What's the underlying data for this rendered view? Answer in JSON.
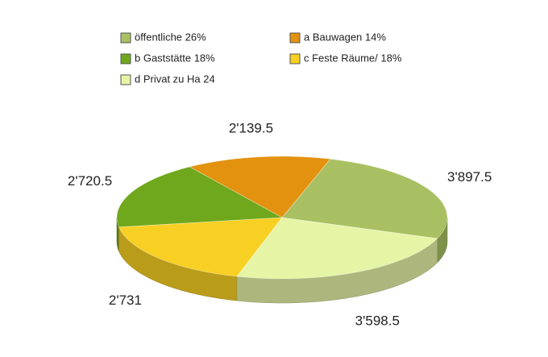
{
  "chart_data": {
    "type": "pie3d",
    "categories": [
      "öffentliche 26%",
      "a Bauwagen 14%",
      "b Gaststätte 18%",
      "c Feste Räume/ 18%",
      "d Privat zu Ha 24"
    ],
    "values": [
      3897.5,
      2139.5,
      2720.5,
      2731,
      3598.5
    ],
    "value_labels": [
      "3'897.5",
      "2'139.5",
      "2'720.5",
      "2'731",
      "3'598.5"
    ],
    "colors": [
      "#a9c062",
      "#e39210",
      "#6fa81c",
      "#f8d024",
      "#e6f4a6"
    ]
  }
}
